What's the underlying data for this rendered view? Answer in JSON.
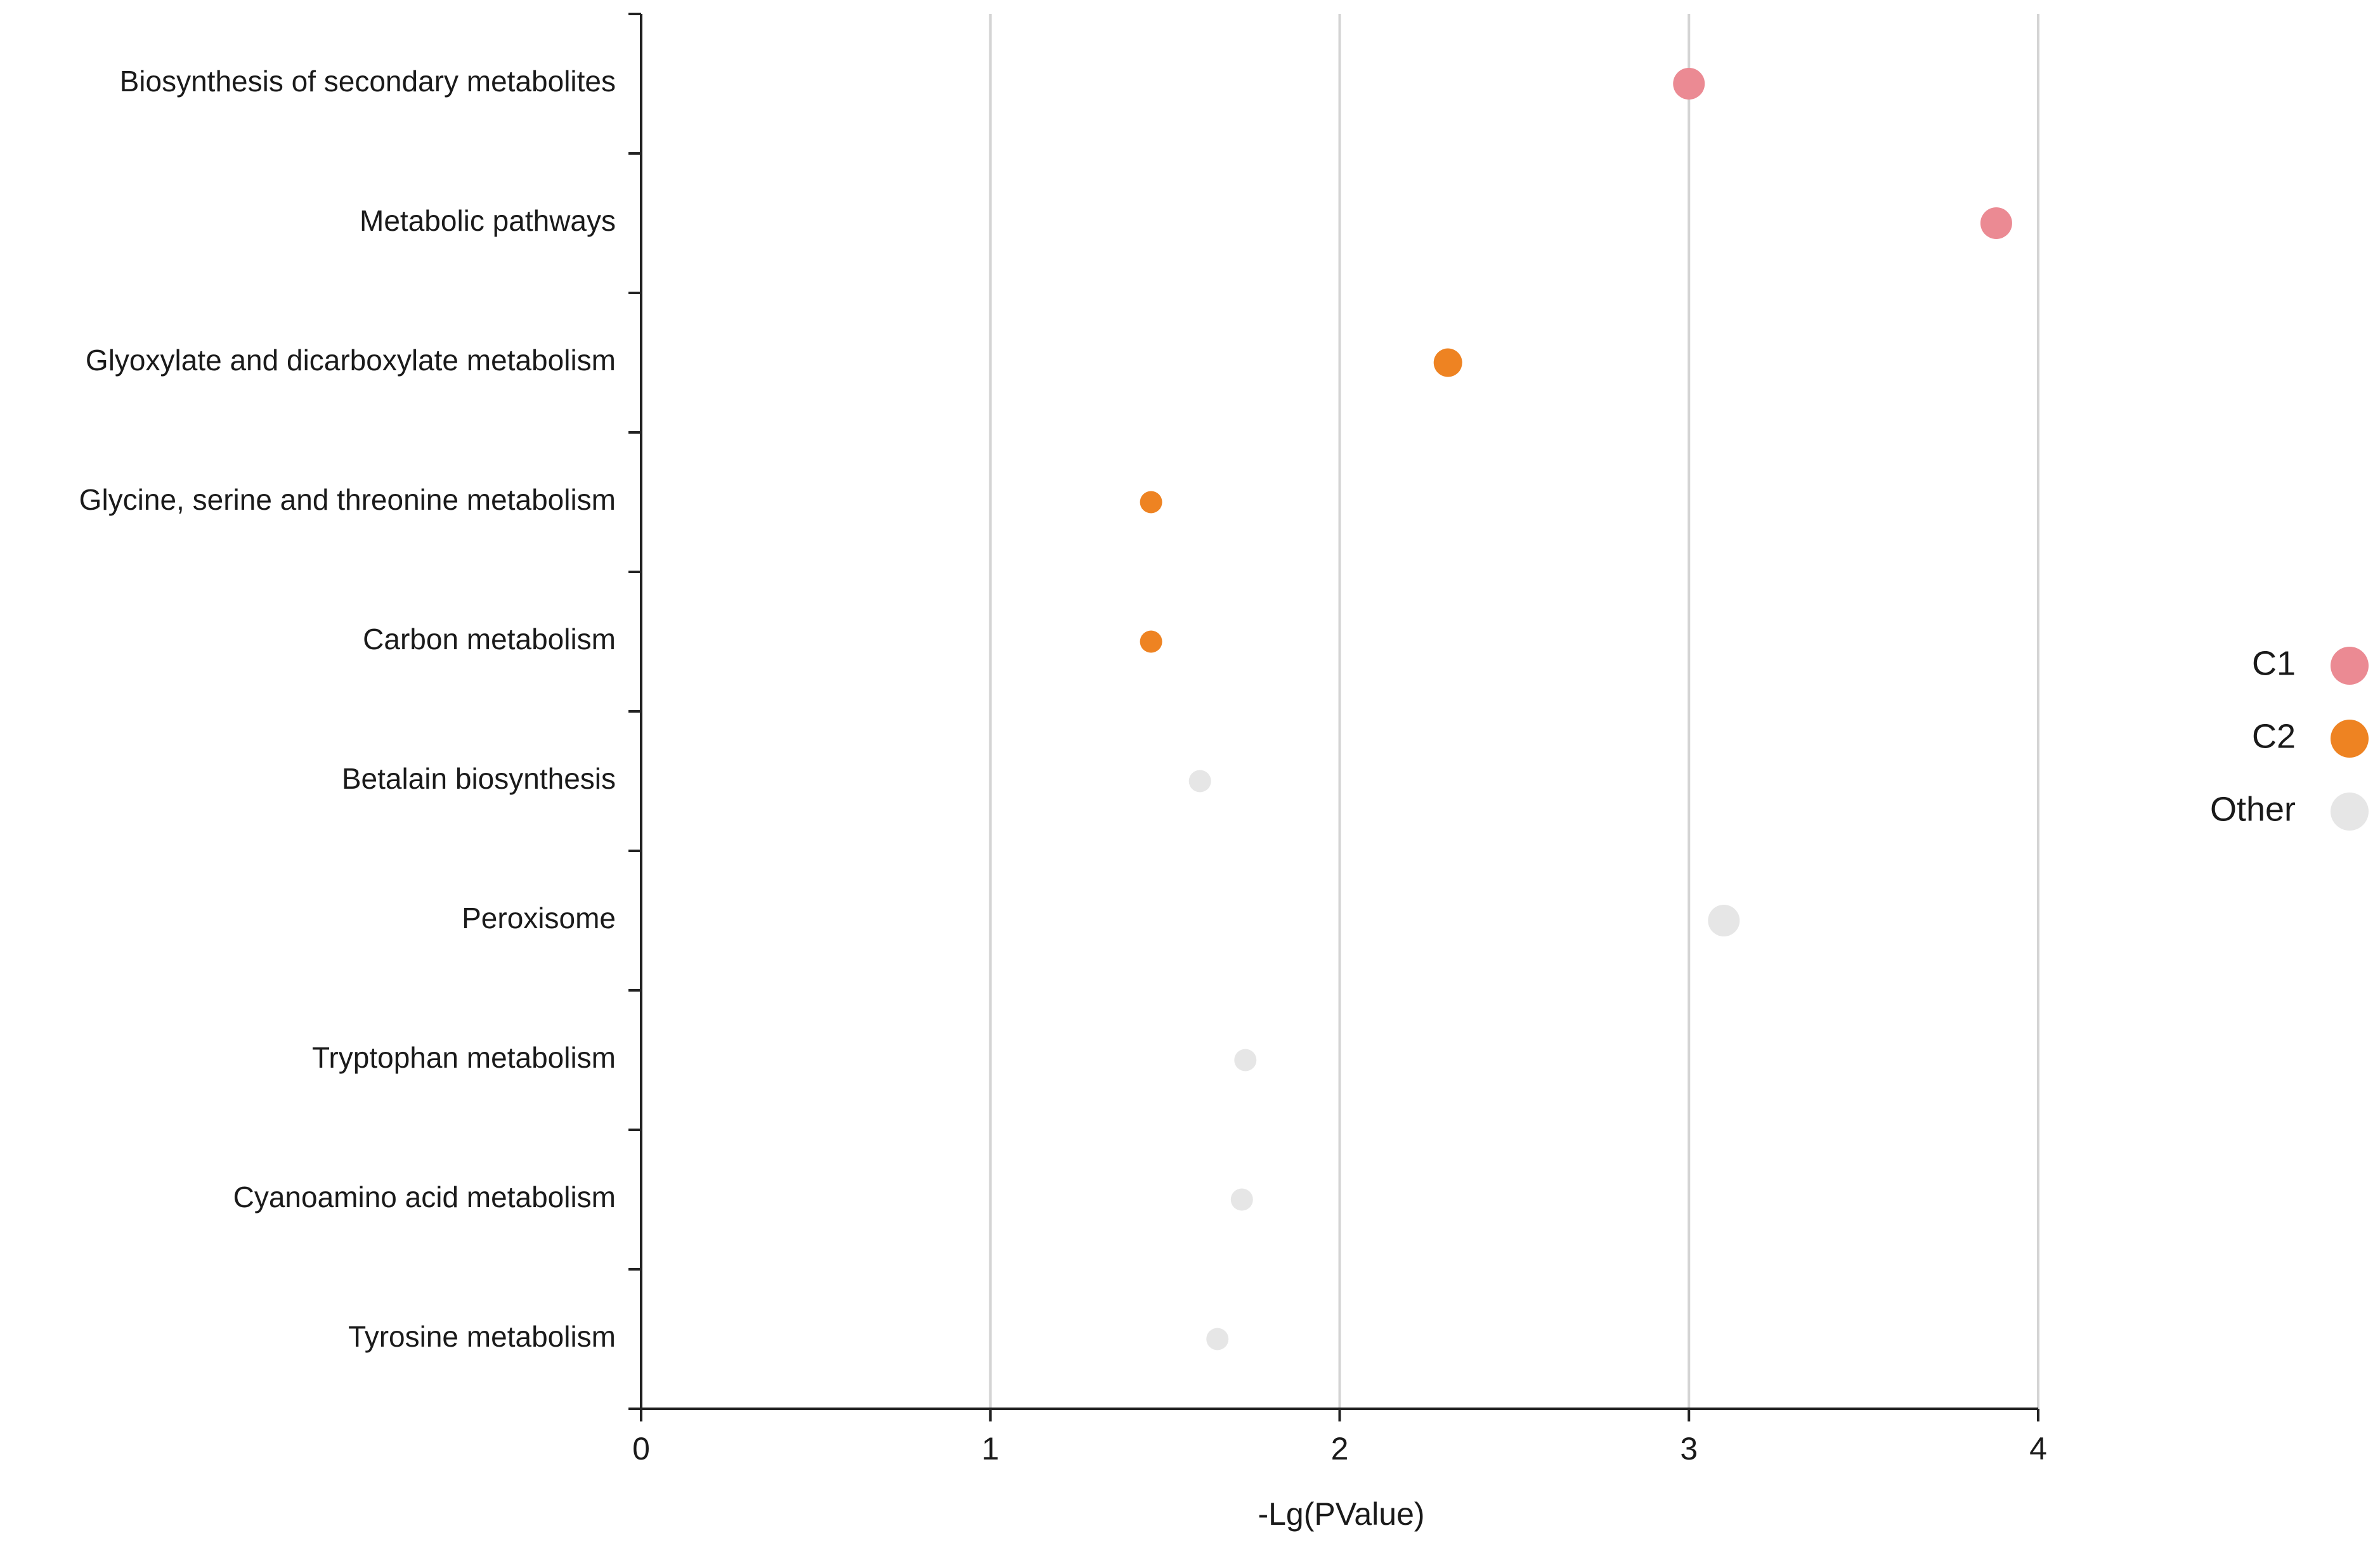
{
  "chart_data": {
    "type": "scatter",
    "title": "",
    "xlabel": "-Lg(PValue)",
    "ylabel": "",
    "xlim": [
      0,
      4
    ],
    "xticks": [
      "0",
      "1",
      "2",
      "3",
      "4"
    ],
    "grid": "vertical",
    "legend_position": "right",
    "categories": [
      "Biosynthesis of secondary metabolites",
      "Metabolic pathways",
      "Glyoxylate and dicarboxylate metabolism",
      "Glycine, serine and threonine metabolism",
      "Carbon metabolism",
      "Betalain biosynthesis",
      "Peroxisome",
      "Tryptophan metabolism",
      "Cyanoamino acid metabolism",
      "Tyrosine metabolism"
    ],
    "groups": [
      {
        "name": "C1",
        "color": "#EB8A93"
      },
      {
        "name": "C2",
        "color": "#EE8322"
      },
      {
        "name": "Other",
        "color": "#E6E6E6"
      }
    ],
    "points": [
      {
        "category": "Biosynthesis of secondary metabolites",
        "x": 3.0,
        "group": "C1",
        "size": 1.0
      },
      {
        "category": "Metabolic pathways",
        "x": 3.88,
        "group": "C1",
        "size": 1.0
      },
      {
        "category": "Glyoxylate and dicarboxylate metabolism",
        "x": 2.31,
        "group": "C2",
        "size": 0.9
      },
      {
        "category": "Glycine, serine and threonine metabolism",
        "x": 1.46,
        "group": "C2",
        "size": 0.7
      },
      {
        "category": "Carbon metabolism",
        "x": 1.46,
        "group": "C2",
        "size": 0.7
      },
      {
        "category": "Betalain biosynthesis",
        "x": 1.6,
        "group": "Other",
        "size": 0.7
      },
      {
        "category": "Peroxisome",
        "x": 3.1,
        "group": "Other",
        "size": 1.0
      },
      {
        "category": "Tryptophan metabolism",
        "x": 1.73,
        "group": "Other",
        "size": 0.7
      },
      {
        "category": "Cyanoamino acid metabolism",
        "x": 1.72,
        "group": "Other",
        "size": 0.7
      },
      {
        "category": "Tyrosine metabolism",
        "x": 1.65,
        "group": "Other",
        "size": 0.7
      }
    ]
  }
}
